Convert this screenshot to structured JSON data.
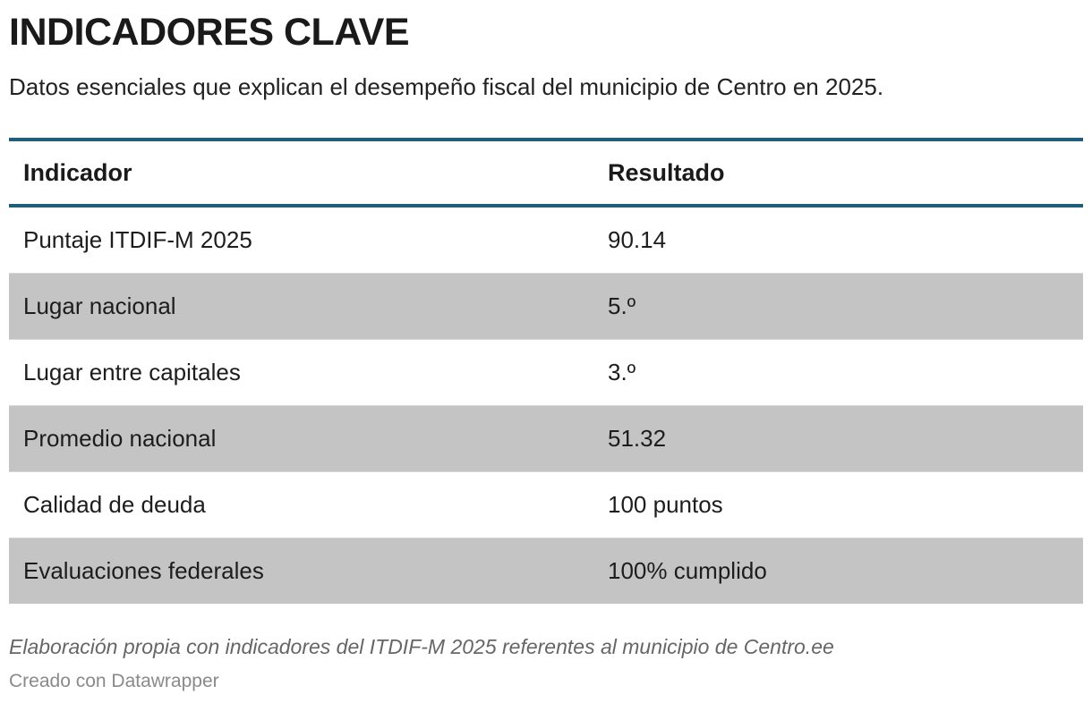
{
  "header": {
    "title": "INDICADORES CLAVE",
    "subtitle": "Datos esenciales que explican el desempeño fiscal del municipio de Centro en 2025."
  },
  "table": {
    "columns": [
      "Indicador",
      "Resultado"
    ],
    "rows": [
      {
        "indicador": "Puntaje ITDIF-M 2025",
        "resultado": "90.14"
      },
      {
        "indicador": "Lugar nacional",
        "resultado": "5.º"
      },
      {
        "indicador": "Lugar entre capitales",
        "resultado": "3.º"
      },
      {
        "indicador": "Promedio nacional",
        "resultado": "51.32"
      },
      {
        "indicador": "Calidad de deuda",
        "resultado": "100 puntos"
      },
      {
        "indicador": "Evaluaciones federales",
        "resultado": "100% cumplido"
      }
    ]
  },
  "footer": {
    "notes": "Elaboración propia con indicadores del ITDIF-M 2025 referentes al municipio de Centro.ee",
    "credit": "Creado con Datawrapper"
  },
  "colors": {
    "rule": "#1f5e7a",
    "stripe": "#c4c4c4"
  }
}
